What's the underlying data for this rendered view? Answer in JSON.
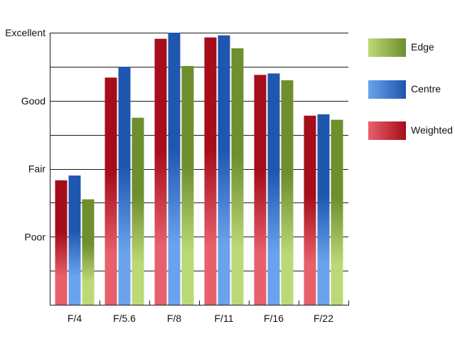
{
  "chart_data": {
    "type": "bar",
    "title": "",
    "xlabel": "",
    "ylabel": "",
    "categories": [
      "F/4",
      "F/5.6",
      "F/8",
      "F/11",
      "F/16",
      "F/22"
    ],
    "ylim": [
      0,
      4
    ],
    "y_ticks": [
      {
        "value": 1,
        "label": "Poor"
      },
      {
        "value": 2,
        "label": "Fair"
      },
      {
        "value": 3,
        "label": "Good"
      },
      {
        "value": 4,
        "label": "Excellent"
      }
    ],
    "grid": true,
    "legend_position": "right",
    "series": [
      {
        "name": "Weighted",
        "key": "weighted",
        "values": [
          1.83,
          3.34,
          3.91,
          3.93,
          3.38,
          2.78
        ],
        "colors": {
          "dark": "#a60d1a",
          "light": "#e8606c"
        }
      },
      {
        "name": "Centre",
        "key": "centre",
        "values": [
          1.9,
          3.5,
          4.0,
          3.96,
          3.4,
          2.8
        ],
        "colors": {
          "dark": "#1e56b0",
          "light": "#6aa3ec"
        }
      },
      {
        "name": "Edge",
        "key": "edge",
        "values": [
          1.55,
          2.75,
          3.51,
          3.77,
          3.3,
          2.72
        ],
        "colors": {
          "dark": "#6f8e2e",
          "light": "#bcd977"
        }
      }
    ],
    "legend_order": [
      "Edge",
      "Centre",
      "Weighted"
    ]
  }
}
